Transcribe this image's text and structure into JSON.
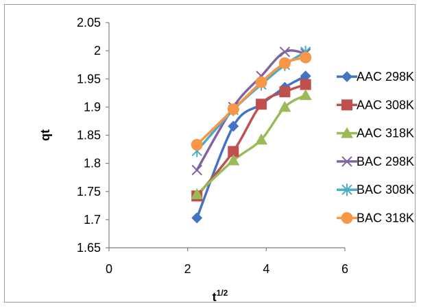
{
  "chart_data": {
    "type": "line",
    "title": "",
    "xlabel": "t",
    "xlabel_sup": "1/2",
    "ylabel": "qt",
    "xlim": [
      0,
      6
    ],
    "ylim": [
      1.65,
      2.05
    ],
    "xticks": [
      0,
      2,
      4,
      6
    ],
    "yticks": [
      1.65,
      1.7,
      1.75,
      1.8,
      1.85,
      1.9,
      1.95,
      2.0,
      2.05
    ],
    "ytick_labels": [
      "1.65",
      "1.7",
      "1.75",
      "1.8",
      "1.85",
      "1.9",
      "1.95",
      "2",
      "2.05"
    ],
    "legend_position": "right",
    "grid": false,
    "series": [
      {
        "name": "AAC 298K",
        "color": "#4472c4",
        "marker": "diamond",
        "x": [
          2.236,
          3.162,
          3.873,
          4.472,
          5.0
        ],
        "y": [
          1.703,
          1.866,
          1.905,
          1.935,
          1.955
        ]
      },
      {
        "name": "AAC 308K",
        "color": "#c0504d",
        "marker": "square",
        "x": [
          2.236,
          3.162,
          3.873,
          4.472,
          5.0
        ],
        "y": [
          1.742,
          1.821,
          1.905,
          1.927,
          1.94
        ]
      },
      {
        "name": "AAC 318K",
        "color": "#9bbb59",
        "marker": "triangle",
        "x": [
          2.236,
          3.162,
          3.873,
          4.472,
          5.0
        ],
        "y": [
          1.745,
          1.805,
          1.842,
          1.9,
          1.921
        ]
      },
      {
        "name": "BAC 298K",
        "color": "#8064a2",
        "marker": "x",
        "x": [
          2.236,
          3.162,
          3.873,
          4.472,
          5.0
        ],
        "y": [
          1.788,
          1.9,
          1.955,
          1.998,
          1.995
        ]
      },
      {
        "name": "BAC 308K",
        "color": "#4bacc6",
        "marker": "star",
        "x": [
          2.236,
          3.162,
          3.873,
          4.472,
          5.0
        ],
        "y": [
          1.822,
          1.895,
          1.94,
          1.975,
          1.998
        ]
      },
      {
        "name": "BAC 318K",
        "color": "#f79646",
        "marker": "circle",
        "x": [
          2.236,
          3.162,
          3.873,
          4.472,
          5.0
        ],
        "y": [
          1.833,
          1.896,
          1.944,
          1.978,
          1.988
        ]
      }
    ]
  }
}
